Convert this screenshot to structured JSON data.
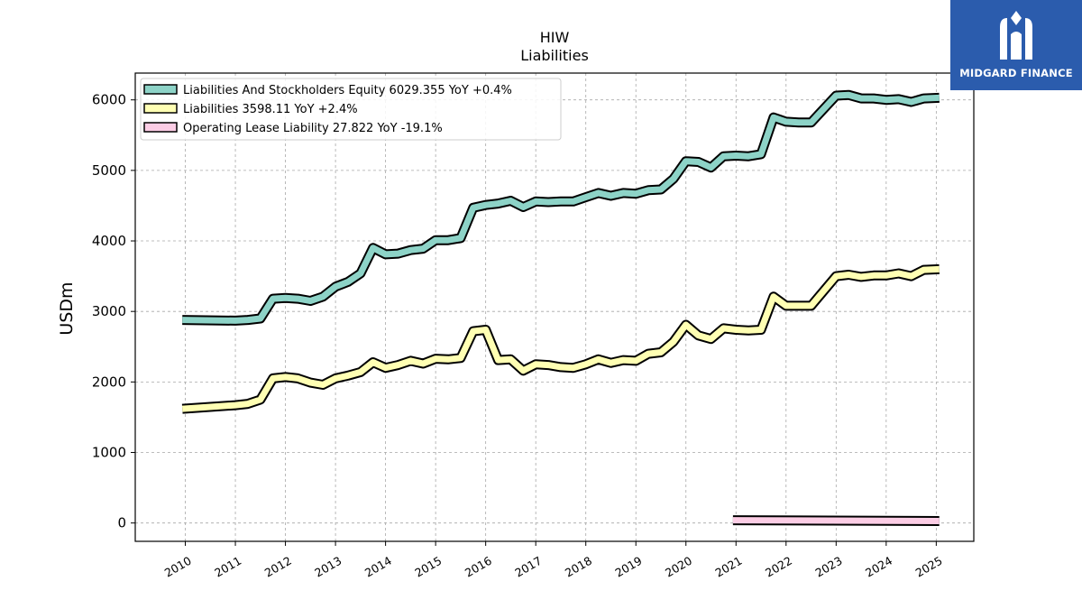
{
  "brand": {
    "name": "MIDGARD FINANCE",
    "color": "#2b5cad",
    "icon": "midgard-logo-icon"
  },
  "chart_data": {
    "type": "line",
    "title": "HIW",
    "subtitle": "Liabilities",
    "xlabel": "",
    "ylabel": "USDm",
    "ylim": [
      -260,
      6380
    ],
    "xlim": [
      2009.0,
      2025.75
    ],
    "yticks": [
      0,
      1000,
      2000,
      3000,
      4000,
      5000,
      6000
    ],
    "yticklabels": [
      "0",
      "1000",
      "2000",
      "3000",
      "4000",
      "5000",
      "6000"
    ],
    "xticks": [
      2010,
      2011,
      2012,
      2013,
      2014,
      2015,
      2016,
      2017,
      2018,
      2019,
      2020,
      2021,
      2022,
      2023,
      2024,
      2025
    ],
    "xticklabels": [
      "2010",
      "2011",
      "2012",
      "2013",
      "2014",
      "2015",
      "2016",
      "2017",
      "2018",
      "2019",
      "2020",
      "2021",
      "2022",
      "2023",
      "2024",
      "2025"
    ],
    "grid": true,
    "legend_position": "top-left",
    "series": [
      {
        "name": "Liabilities And Stockholders Equity",
        "legend_label": "Liabilities And Stockholders Equity  6029.355 YoY +0.4%",
        "color": "#8dd3c7",
        "x": [
          2009.94,
          2011.0,
          2011.25,
          2011.5,
          2011.75,
          2012.0,
          2012.25,
          2012.5,
          2012.75,
          2013.0,
          2013.25,
          2013.5,
          2013.75,
          2014.0,
          2014.25,
          2014.5,
          2014.75,
          2015.0,
          2015.25,
          2015.5,
          2015.75,
          2016.0,
          2016.25,
          2016.5,
          2016.75,
          2017.0,
          2017.25,
          2017.5,
          2017.75,
          2018.0,
          2018.25,
          2018.5,
          2018.75,
          2019.0,
          2019.25,
          2019.5,
          2019.75,
          2020.0,
          2020.25,
          2020.5,
          2020.75,
          2021.0,
          2021.25,
          2021.5,
          2021.75,
          2022.0,
          2022.25,
          2022.5,
          2023.0,
          2023.25,
          2023.5,
          2023.75,
          2024.0,
          2024.25,
          2024.5,
          2024.75,
          2025.06
        ],
        "values": [
          2880,
          2870,
          2880,
          2900,
          3180,
          3190,
          3180,
          3150,
          3210,
          3350,
          3420,
          3540,
          3900,
          3810,
          3820,
          3870,
          3890,
          4010,
          4010,
          4040,
          4470,
          4510,
          4530,
          4570,
          4480,
          4560,
          4550,
          4560,
          4560,
          4620,
          4680,
          4640,
          4680,
          4670,
          4720,
          4730,
          4880,
          5130,
          5120,
          5040,
          5200,
          5210,
          5200,
          5230,
          5750,
          5690,
          5680,
          5680,
          6060,
          6070,
          6020,
          6020,
          6000,
          6010,
          5970,
          6020,
          6030
        ]
      },
      {
        "name": "Liabilities",
        "legend_label": "Liabilities  3598.11 YoY +2.4%",
        "color": "#ffffb3",
        "x": [
          2009.94,
          2011.0,
          2011.25,
          2011.5,
          2011.75,
          2012.0,
          2012.25,
          2012.5,
          2012.75,
          2013.0,
          2013.25,
          2013.5,
          2013.75,
          2014.0,
          2014.25,
          2014.5,
          2014.75,
          2015.0,
          2015.25,
          2015.5,
          2015.75,
          2016.0,
          2016.25,
          2016.5,
          2016.75,
          2017.0,
          2017.25,
          2017.5,
          2017.75,
          2018.0,
          2018.25,
          2018.5,
          2018.75,
          2019.0,
          2019.25,
          2019.5,
          2019.75,
          2020.0,
          2020.25,
          2020.5,
          2020.75,
          2021.0,
          2021.25,
          2021.5,
          2021.75,
          2022.0,
          2022.25,
          2022.5,
          2023.0,
          2023.25,
          2023.5,
          2023.75,
          2024.0,
          2024.25,
          2024.5,
          2024.75,
          2025.06
        ],
        "values": [
          1620,
          1670,
          1690,
          1750,
          2050,
          2070,
          2050,
          1990,
          1960,
          2050,
          2090,
          2140,
          2280,
          2200,
          2240,
          2300,
          2260,
          2330,
          2320,
          2340,
          2720,
          2740,
          2310,
          2320,
          2160,
          2250,
          2240,
          2210,
          2200,
          2250,
          2320,
          2270,
          2310,
          2300,
          2400,
          2420,
          2570,
          2810,
          2660,
          2610,
          2760,
          2740,
          2730,
          2740,
          3210,
          3080,
          3080,
          3080,
          3500,
          3520,
          3490,
          3510,
          3510,
          3540,
          3500,
          3590,
          3598
        ]
      },
      {
        "name": "Operating Lease Liability",
        "legend_label": "Operating Lease Liability  27.822 YoY -19.1%",
        "color": "#fccde5",
        "x": [
          2020.94,
          2025.06
        ],
        "values": [
          40,
          28
        ]
      }
    ]
  }
}
